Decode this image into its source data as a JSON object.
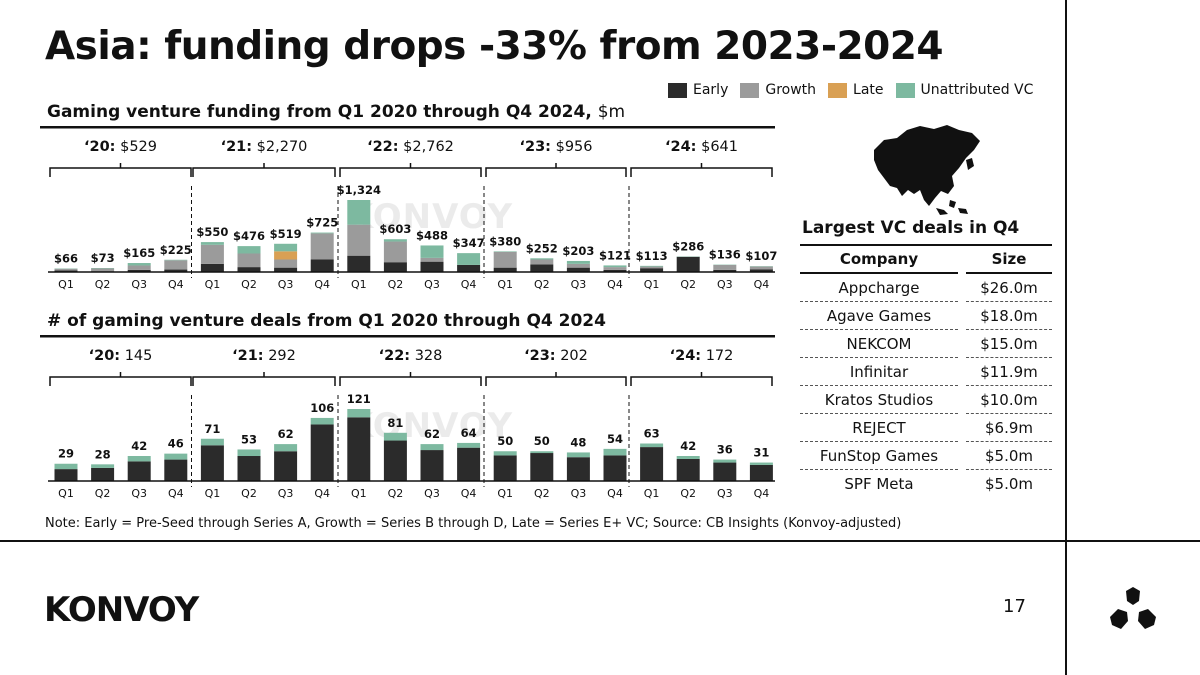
{
  "title": "Asia: funding drops -33% from 2023-2024",
  "legend": [
    {
      "label": "Early",
      "color": "#2b2b2b"
    },
    {
      "label": "Growth",
      "color": "#9b9b9b"
    },
    {
      "label": "Late",
      "color": "#d9a054"
    },
    {
      "label": "Unattributed VC",
      "color": "#7db9a0"
    }
  ],
  "charts": {
    "funding": {
      "title": "Gaming venture funding from Q1 2020 through Q4 2024,",
      "unit": "$m"
    },
    "deals": {
      "title": "# of gaming venture deals from Q1 2020 through Q4 2024"
    }
  },
  "watermark": "KONVOY",
  "chart_data": [
    {
      "type": "bar",
      "stacked": true,
      "title": "Gaming venture funding from Q1 2020 through Q4 2024, $m",
      "categories": [
        "Q1",
        "Q2",
        "Q3",
        "Q4",
        "Q1",
        "Q2",
        "Q3",
        "Q4",
        "Q1",
        "Q2",
        "Q3",
        "Q4",
        "Q1",
        "Q2",
        "Q3",
        "Q4",
        "Q1",
        "Q2",
        "Q3",
        "Q4"
      ],
      "years": [
        {
          "label": "‘20:",
          "total": "$529"
        },
        {
          "label": "‘21:",
          "total": "$2,270"
        },
        {
          "label": "‘22:",
          "total": "$2,762"
        },
        {
          "label": "‘23:",
          "total": "$956"
        },
        {
          "label": "‘24:",
          "total": "$641"
        }
      ],
      "data_labels": [
        "$66",
        "$73",
        "$165",
        "$225",
        "$550",
        "$476",
        "$519",
        "$725",
        "$1,324",
        "$603",
        "$488",
        "$347",
        "$380",
        "$252",
        "$203",
        "$121",
        "$113",
        "$286",
        "$136",
        "$107"
      ],
      "ylim": [
        0,
        1324
      ],
      "series": [
        {
          "name": "Early",
          "values": [
            30,
            15,
            40,
            45,
            150,
            90,
            80,
            230,
            300,
            180,
            190,
            130,
            80,
            140,
            80,
            40,
            70,
            280,
            40,
            50
          ]
        },
        {
          "name": "Growth",
          "values": [
            30,
            50,
            80,
            170,
            350,
            250,
            150,
            480,
            570,
            380,
            70,
            0,
            290,
            90,
            70,
            50,
            30,
            0,
            90,
            50
          ]
        },
        {
          "name": "Late",
          "values": [
            0,
            0,
            0,
            0,
            0,
            0,
            150,
            0,
            0,
            0,
            0,
            0,
            0,
            0,
            0,
            0,
            0,
            0,
            0,
            0
          ]
        },
        {
          "name": "Unattributed VC",
          "values": [
            6,
            8,
            45,
            10,
            50,
            136,
            139,
            15,
            454,
            43,
            228,
            217,
            10,
            22,
            53,
            31,
            13,
            6,
            6,
            7
          ]
        }
      ]
    },
    {
      "type": "bar",
      "stacked": true,
      "title": "# of gaming venture deals from Q1 2020 through Q4 2024",
      "categories": [
        "Q1",
        "Q2",
        "Q3",
        "Q4",
        "Q1",
        "Q2",
        "Q3",
        "Q4",
        "Q1",
        "Q2",
        "Q3",
        "Q4",
        "Q1",
        "Q2",
        "Q3",
        "Q4",
        "Q1",
        "Q2",
        "Q3",
        "Q4"
      ],
      "years": [
        {
          "label": "‘20:",
          "total": "145"
        },
        {
          "label": "‘21:",
          "total": "292"
        },
        {
          "label": "‘22:",
          "total": "328"
        },
        {
          "label": "‘23:",
          "total": "202"
        },
        {
          "label": "‘24:",
          "total": "172"
        }
      ],
      "data_labels": [
        "29",
        "28",
        "42",
        "46",
        "71",
        "53",
        "62",
        "106",
        "121",
        "81",
        "62",
        "64",
        "50",
        "50",
        "48",
        "54",
        "63",
        "42",
        "36",
        "31"
      ],
      "ylim": [
        0,
        121
      ],
      "series": [
        {
          "name": "Early",
          "values": [
            20,
            22,
            33,
            36,
            60,
            42,
            50,
            95,
            107,
            68,
            52,
            56,
            43,
            47,
            40,
            43,
            57,
            37,
            31,
            27
          ]
        },
        {
          "name": "Growth",
          "values": [
            0,
            0,
            0,
            0,
            0,
            0,
            0,
            0,
            0,
            0,
            0,
            0,
            0,
            0,
            0,
            0,
            0,
            0,
            0,
            0
          ]
        },
        {
          "name": "Late",
          "values": [
            0,
            0,
            0,
            0,
            0,
            0,
            0,
            0,
            0,
            0,
            0,
            0,
            0,
            0,
            0,
            0,
            0,
            0,
            0,
            0
          ]
        },
        {
          "name": "Unattributed VC",
          "values": [
            9,
            6,
            9,
            10,
            11,
            11,
            12,
            11,
            14,
            13,
            10,
            8,
            7,
            3,
            8,
            11,
            6,
            5,
            5,
            4
          ]
        }
      ]
    }
  ],
  "deals": {
    "title": "Largest VC deals in Q4",
    "headers": {
      "company": "Company",
      "size": "Size"
    },
    "rows": [
      {
        "company": "Appcharge",
        "size": "$26.0m"
      },
      {
        "company": "Agave Games",
        "size": "$18.0m"
      },
      {
        "company": "NEKCOM",
        "size": "$15.0m"
      },
      {
        "company": "Infinitar",
        "size": "$11.9m"
      },
      {
        "company": "Kratos Studios",
        "size": "$10.0m"
      },
      {
        "company": "REJECT",
        "size": "$6.9m"
      },
      {
        "company": "FunStop Games",
        "size": "$5.0m"
      },
      {
        "company": "SPF Meta",
        "size": "$5.0m"
      }
    ]
  },
  "note": "Note: Early = Pre-Seed through Series A, Growth = Series B through D, Late = Series E+ VC; Source: CB Insights (Konvoy-adjusted)",
  "footer": {
    "brand": "KONVOY",
    "page_number": "17"
  }
}
